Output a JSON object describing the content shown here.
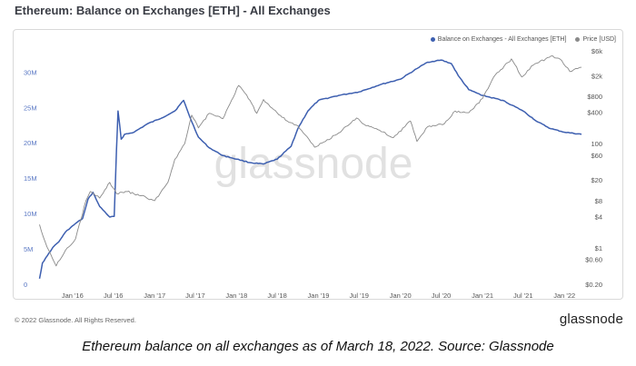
{
  "header": {
    "title": "Ethereum: Balance on Exchanges [ETH] - All Exchanges"
  },
  "footer": {
    "copyright": "© 2022 Glassnode. All Rights Reserved.",
    "brand": "glassnode",
    "caption": "Ethereum balance on all exchanges as of March 18, 2022. Source: Glassnode"
  },
  "watermark": "glassnode",
  "colors": {
    "balance": "#3d5fb0",
    "price": "#8a8a8a",
    "axis_left": "#5a78c4",
    "axis_right": "#555555"
  },
  "chart_data": {
    "type": "line",
    "title": "Ethereum: Balance on Exchanges [ETH] - All Exchanges",
    "x_range": [
      "2015-08-01",
      "2022-03-18"
    ],
    "x_ticks": [
      {
        "label": "Jan '16",
        "date": "2016-01-01"
      },
      {
        "label": "Jul '16",
        "date": "2016-07-01"
      },
      {
        "label": "Jan '17",
        "date": "2017-01-01"
      },
      {
        "label": "Jul '17",
        "date": "2017-07-01"
      },
      {
        "label": "Jan '18",
        "date": "2018-01-01"
      },
      {
        "label": "Jul '18",
        "date": "2018-07-01"
      },
      {
        "label": "Jan '19",
        "date": "2019-01-01"
      },
      {
        "label": "Jul '19",
        "date": "2019-07-01"
      },
      {
        "label": "Jan '20",
        "date": "2020-01-01"
      },
      {
        "label": "Jul '20",
        "date": "2020-07-01"
      },
      {
        "label": "Jan '21",
        "date": "2021-01-01"
      },
      {
        "label": "Jul '21",
        "date": "2021-07-01"
      },
      {
        "label": "Jan '22",
        "date": "2022-01-01"
      }
    ],
    "y_left": {
      "range": [
        0,
        33000000
      ],
      "ticks": [
        {
          "label": "0",
          "value": 0
        },
        {
          "label": "5M",
          "value": 5000000
        },
        {
          "label": "10M",
          "value": 10000000
        },
        {
          "label": "15M",
          "value": 15000000
        },
        {
          "label": "20M",
          "value": 20000000
        },
        {
          "label": "25M",
          "value": 25000000
        },
        {
          "label": "30M",
          "value": 30000000
        }
      ]
    },
    "y_right": {
      "scale": "log",
      "range": [
        0.2,
        6000
      ],
      "ticks": [
        {
          "label": "$0.20",
          "value": 0.2
        },
        {
          "label": "$0.60",
          "value": 0.6
        },
        {
          "label": "$1",
          "value": 1
        },
        {
          "label": "$4",
          "value": 4
        },
        {
          "label": "$8",
          "value": 8
        },
        {
          "label": "$20",
          "value": 20
        },
        {
          "label": "$60",
          "value": 60
        },
        {
          "label": "100",
          "value": 100
        },
        {
          "label": "$400",
          "value": 400
        },
        {
          "label": "$800",
          "value": 800
        },
        {
          "label": "$2k",
          "value": 2000
        },
        {
          "label": "$6k",
          "value": 6000
        }
      ]
    },
    "legend_position": "top-right",
    "series": [
      {
        "name": "Balance on Exchanges - All Exchanges [ETH]",
        "axis": "left",
        "color": "#3d5fb0",
        "points": [
          [
            "2015-08-07",
            800000
          ],
          [
            "2015-08-20",
            3000000
          ],
          [
            "2015-09-10",
            4000000
          ],
          [
            "2015-10-05",
            5200000
          ],
          [
            "2015-11-01",
            6000000
          ],
          [
            "2015-12-01",
            7400000
          ],
          [
            "2016-01-15",
            8600000
          ],
          [
            "2016-02-15",
            9300000
          ],
          [
            "2016-03-10",
            12000000
          ],
          [
            "2016-04-01",
            13000000
          ],
          [
            "2016-05-01",
            11000000
          ],
          [
            "2016-06-15",
            9500000
          ],
          [
            "2016-07-05",
            9600000
          ],
          [
            "2016-07-15",
            19000000
          ],
          [
            "2016-07-22",
            24500000
          ],
          [
            "2016-08-05",
            20500000
          ],
          [
            "2016-08-20",
            21200000
          ],
          [
            "2016-10-01",
            21500000
          ],
          [
            "2016-12-01",
            22700000
          ],
          [
            "2017-02-01",
            23500000
          ],
          [
            "2017-04-01",
            24500000
          ],
          [
            "2017-05-10",
            26000000
          ],
          [
            "2017-06-15",
            23000000
          ],
          [
            "2017-07-15",
            20800000
          ],
          [
            "2017-09-01",
            19300000
          ],
          [
            "2017-11-01",
            18200000
          ],
          [
            "2018-01-01",
            17700000
          ],
          [
            "2018-03-01",
            17200000
          ],
          [
            "2018-05-01",
            17000000
          ],
          [
            "2018-07-01",
            17700000
          ],
          [
            "2018-09-01",
            19500000
          ],
          [
            "2018-10-01",
            22000000
          ],
          [
            "2018-11-15",
            24500000
          ],
          [
            "2019-01-01",
            26000000
          ],
          [
            "2019-04-01",
            26700000
          ],
          [
            "2019-07-01",
            27200000
          ],
          [
            "2019-10-01",
            28200000
          ],
          [
            "2020-01-01",
            29000000
          ],
          [
            "2020-03-15",
            30500000
          ],
          [
            "2020-05-01",
            31400000
          ],
          [
            "2020-07-01",
            31700000
          ],
          [
            "2020-08-15",
            31200000
          ],
          [
            "2020-09-15",
            29500000
          ],
          [
            "2020-11-01",
            27500000
          ],
          [
            "2021-01-01",
            26700000
          ],
          [
            "2021-04-01",
            26000000
          ],
          [
            "2021-07-01",
            24500000
          ],
          [
            "2021-09-01",
            23000000
          ],
          [
            "2021-11-01",
            22000000
          ],
          [
            "2022-01-01",
            21500000
          ],
          [
            "2022-03-18",
            21200000
          ]
        ]
      },
      {
        "name": "Price [USD]",
        "axis": "right",
        "color": "#8a8a8a",
        "points": [
          [
            "2015-08-07",
            2.8
          ],
          [
            "2015-09-01",
            1.3
          ],
          [
            "2015-10-20",
            0.45
          ],
          [
            "2015-12-01",
            0.9
          ],
          [
            "2016-01-15",
            1.5
          ],
          [
            "2016-03-01",
            8
          ],
          [
            "2016-03-20",
            12
          ],
          [
            "2016-05-01",
            9
          ],
          [
            "2016-06-15",
            18
          ],
          [
            "2016-07-15",
            11
          ],
          [
            "2016-09-01",
            12
          ],
          [
            "2016-11-01",
            10
          ],
          [
            "2017-01-01",
            8
          ],
          [
            "2017-03-01",
            18
          ],
          [
            "2017-04-01",
            50
          ],
          [
            "2017-05-15",
            100
          ],
          [
            "2017-06-15",
            350
          ],
          [
            "2017-07-15",
            200
          ],
          [
            "2017-09-01",
            380
          ],
          [
            "2017-11-01",
            300
          ],
          [
            "2018-01-10",
            1300
          ],
          [
            "2018-02-15",
            850
          ],
          [
            "2018-04-01",
            380
          ],
          [
            "2018-05-01",
            700
          ],
          [
            "2018-06-15",
            450
          ],
          [
            "2018-08-15",
            270
          ],
          [
            "2018-10-01",
            220
          ],
          [
            "2018-12-15",
            85
          ],
          [
            "2019-02-01",
            110
          ],
          [
            "2019-04-01",
            160
          ],
          [
            "2019-06-20",
            310
          ],
          [
            "2019-08-01",
            220
          ],
          [
            "2019-10-01",
            180
          ],
          [
            "2019-12-01",
            130
          ],
          [
            "2020-02-15",
            270
          ],
          [
            "2020-03-15",
            110
          ],
          [
            "2020-05-01",
            210
          ],
          [
            "2020-07-15",
            240
          ],
          [
            "2020-09-01",
            420
          ],
          [
            "2020-11-01",
            390
          ],
          [
            "2021-01-01",
            730
          ],
          [
            "2021-02-20",
            1900
          ],
          [
            "2021-05-10",
            4200
          ],
          [
            "2021-06-25",
            1900
          ],
          [
            "2021-08-15",
            3200
          ],
          [
            "2021-11-10",
            4800
          ],
          [
            "2021-12-20",
            3900
          ],
          [
            "2022-01-25",
            2400
          ],
          [
            "2022-03-18",
            2900
          ]
        ]
      }
    ]
  }
}
